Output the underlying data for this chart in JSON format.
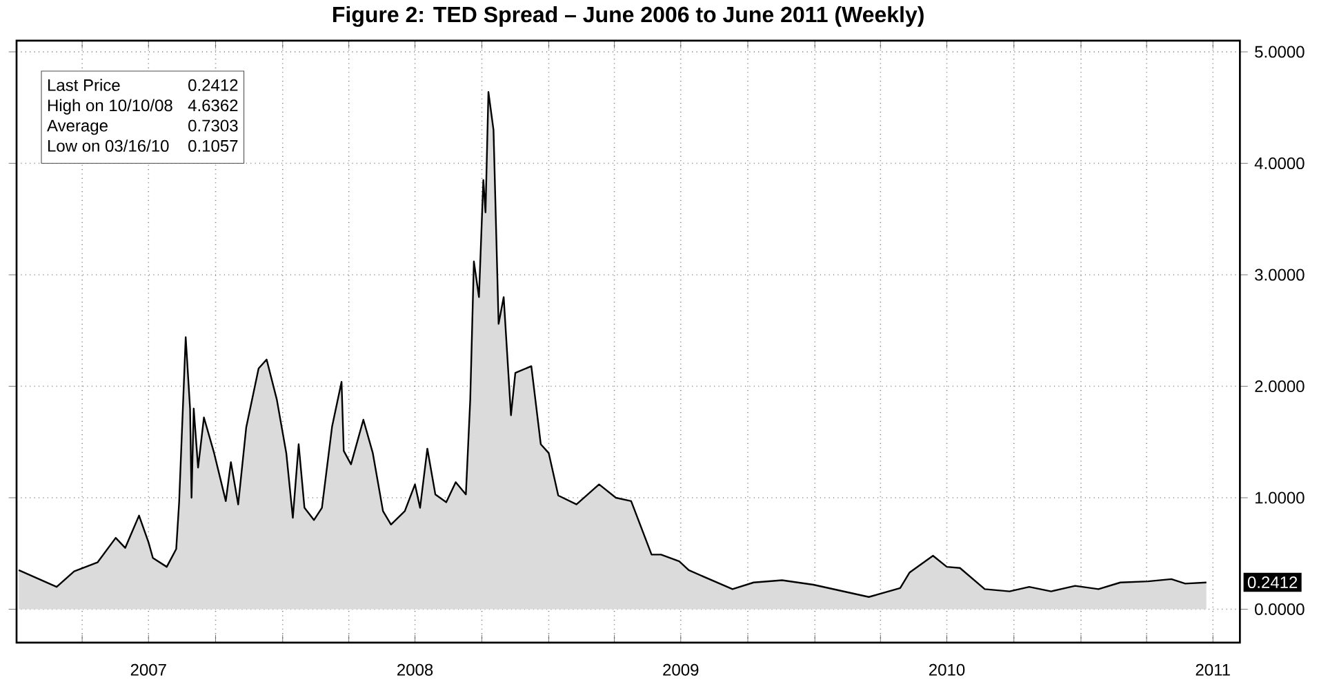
{
  "chart_data": {
    "type": "area",
    "title": "Figure 2: TED Spread – June 2006 to June 2011 (Weekly)",
    "x": [
      "2007-01-04",
      "2007-02-25",
      "2007-03-21",
      "2007-04-22",
      "2007-05-17",
      "2007-05-30",
      "2007-06-18",
      "2007-07-01",
      "2007-07-07",
      "2007-07-26",
      "2007-08-08",
      "2007-08-12",
      "2007-08-21",
      "2007-08-27",
      "2007-08-29",
      "2007-09-01",
      "2007-09-07",
      "2007-09-15",
      "2007-09-29",
      "2007-10-15",
      "2007-10-22",
      "2007-11-01",
      "2007-11-12",
      "2007-11-29",
      "2007-12-10",
      "2007-12-24",
      "2008-01-06",
      "2008-01-15",
      "2008-01-23",
      "2008-01-31",
      "2008-02-13",
      "2008-02-24",
      "2008-03-09",
      "2008-03-22",
      "2008-03-25",
      "2008-04-04",
      "2008-04-21",
      "2008-05-04",
      "2008-05-18",
      "2008-05-29",
      "2008-06-17",
      "2008-07-01",
      "2008-07-08",
      "2008-07-18",
      "2008-07-29",
      "2008-08-13",
      "2008-08-26",
      "2008-09-09",
      "2008-09-15",
      "2008-09-20",
      "2008-09-27",
      "2008-10-03",
      "2008-10-06",
      "2008-10-10",
      "2008-10-17",
      "2008-10-24",
      "2008-10-31",
      "2008-11-10",
      "2008-11-16",
      "2008-12-08",
      "2008-12-21",
      "2009-01-01",
      "2009-01-14",
      "2009-02-08",
      "2009-03-11",
      "2009-04-03",
      "2009-04-24",
      "2009-05-22",
      "2009-06-04",
      "2009-06-29",
      "2009-07-12",
      "2009-09-10",
      "2009-10-09",
      "2009-11-17",
      "2009-12-30",
      "2010-03-16",
      "2010-04-28",
      "2010-05-11",
      "2010-06-12",
      "2010-07-01",
      "2010-07-19",
      "2010-08-22",
      "2010-09-25",
      "2010-10-22",
      "2010-11-21",
      "2010-12-24",
      "2011-01-25",
      "2011-02-24",
      "2011-04-03",
      "2011-05-05",
      "2011-05-24",
      "2011-06-22"
    ],
    "series": [
      {
        "color": "#000000",
        "values": [
          0.35,
          0.2,
          0.34,
          0.42,
          0.64,
          0.55,
          0.84,
          0.6,
          0.46,
          0.38,
          0.54,
          0.96,
          2.44,
          1.8,
          1.0,
          1.8,
          1.27,
          1.72,
          1.4,
          0.97,
          1.32,
          0.94,
          1.63,
          2.16,
          2.24,
          1.88,
          1.4,
          0.82,
          1.48,
          0.91,
          0.8,
          0.91,
          1.64,
          2.04,
          1.42,
          1.3,
          1.7,
          1.4,
          0.88,
          0.76,
          0.88,
          1.12,
          0.91,
          1.44,
          1.03,
          0.96,
          1.14,
          1.03,
          1.88,
          3.12,
          2.8,
          3.85,
          3.56,
          4.64,
          4.3,
          2.56,
          2.8,
          1.74,
          2.12,
          2.18,
          1.48,
          1.4,
          1.02,
          0.94,
          1.12,
          1.0,
          0.97,
          0.49,
          0.49,
          0.43,
          0.35,
          0.18,
          0.24,
          0.26,
          0.22,
          0.11,
          0.19,
          0.33,
          0.48,
          0.38,
          0.37,
          0.18,
          0.16,
          0.2,
          0.16,
          0.21,
          0.18,
          0.24,
          0.25,
          0.27,
          0.23,
          0.24
        ]
      }
    ],
    "xlim": [
      "2007-01-01",
      "2011-08-07"
    ],
    "xticks": [
      {
        "value": "2007-04-01",
        "label": null
      },
      {
        "value": "2007-07-01",
        "label": "2007"
      },
      {
        "value": "2007-10-01",
        "label": null
      },
      {
        "value": "2008-01-01",
        "label": null
      },
      {
        "value": "2008-04-01",
        "label": null
      },
      {
        "value": "2008-07-01",
        "label": "2008"
      },
      {
        "value": "2008-10-01",
        "label": null
      },
      {
        "value": "2009-01-01",
        "label": null
      },
      {
        "value": "2009-04-01",
        "label": null
      },
      {
        "value": "2009-07-01",
        "label": "2009"
      },
      {
        "value": "2009-10-01",
        "label": null
      },
      {
        "value": "2010-01-01",
        "label": null
      },
      {
        "value": "2010-04-01",
        "label": null
      },
      {
        "value": "2010-07-01",
        "label": "2010"
      },
      {
        "value": "2010-10-01",
        "label": null
      },
      {
        "value": "2011-01-01",
        "label": null
      },
      {
        "value": "2011-04-01",
        "label": null
      },
      {
        "value": "2011-07-01",
        "label": "2011"
      }
    ],
    "ylim": [
      -0.3,
      5.1
    ],
    "yticks": [
      {
        "value": 0,
        "label": "0.0000"
      },
      {
        "value": 1,
        "label": "1.0000"
      },
      {
        "value": 2,
        "label": "2.0000"
      },
      {
        "value": 3,
        "label": "3.0000"
      },
      {
        "value": 4,
        "label": "4.0000"
      },
      {
        "value": 5,
        "label": "5.0000"
      }
    ],
    "grid": true,
    "annotations": [
      "Last Price",
      "0.2412",
      "High on 10/10/08",
      "4.6362",
      "Average",
      "0.7303",
      "Low on 03/16/10",
      "0.1057",
      {
        "text": "0.2412",
        "x": "2011-06-22",
        "y": 0.2412
      }
    ]
  }
}
